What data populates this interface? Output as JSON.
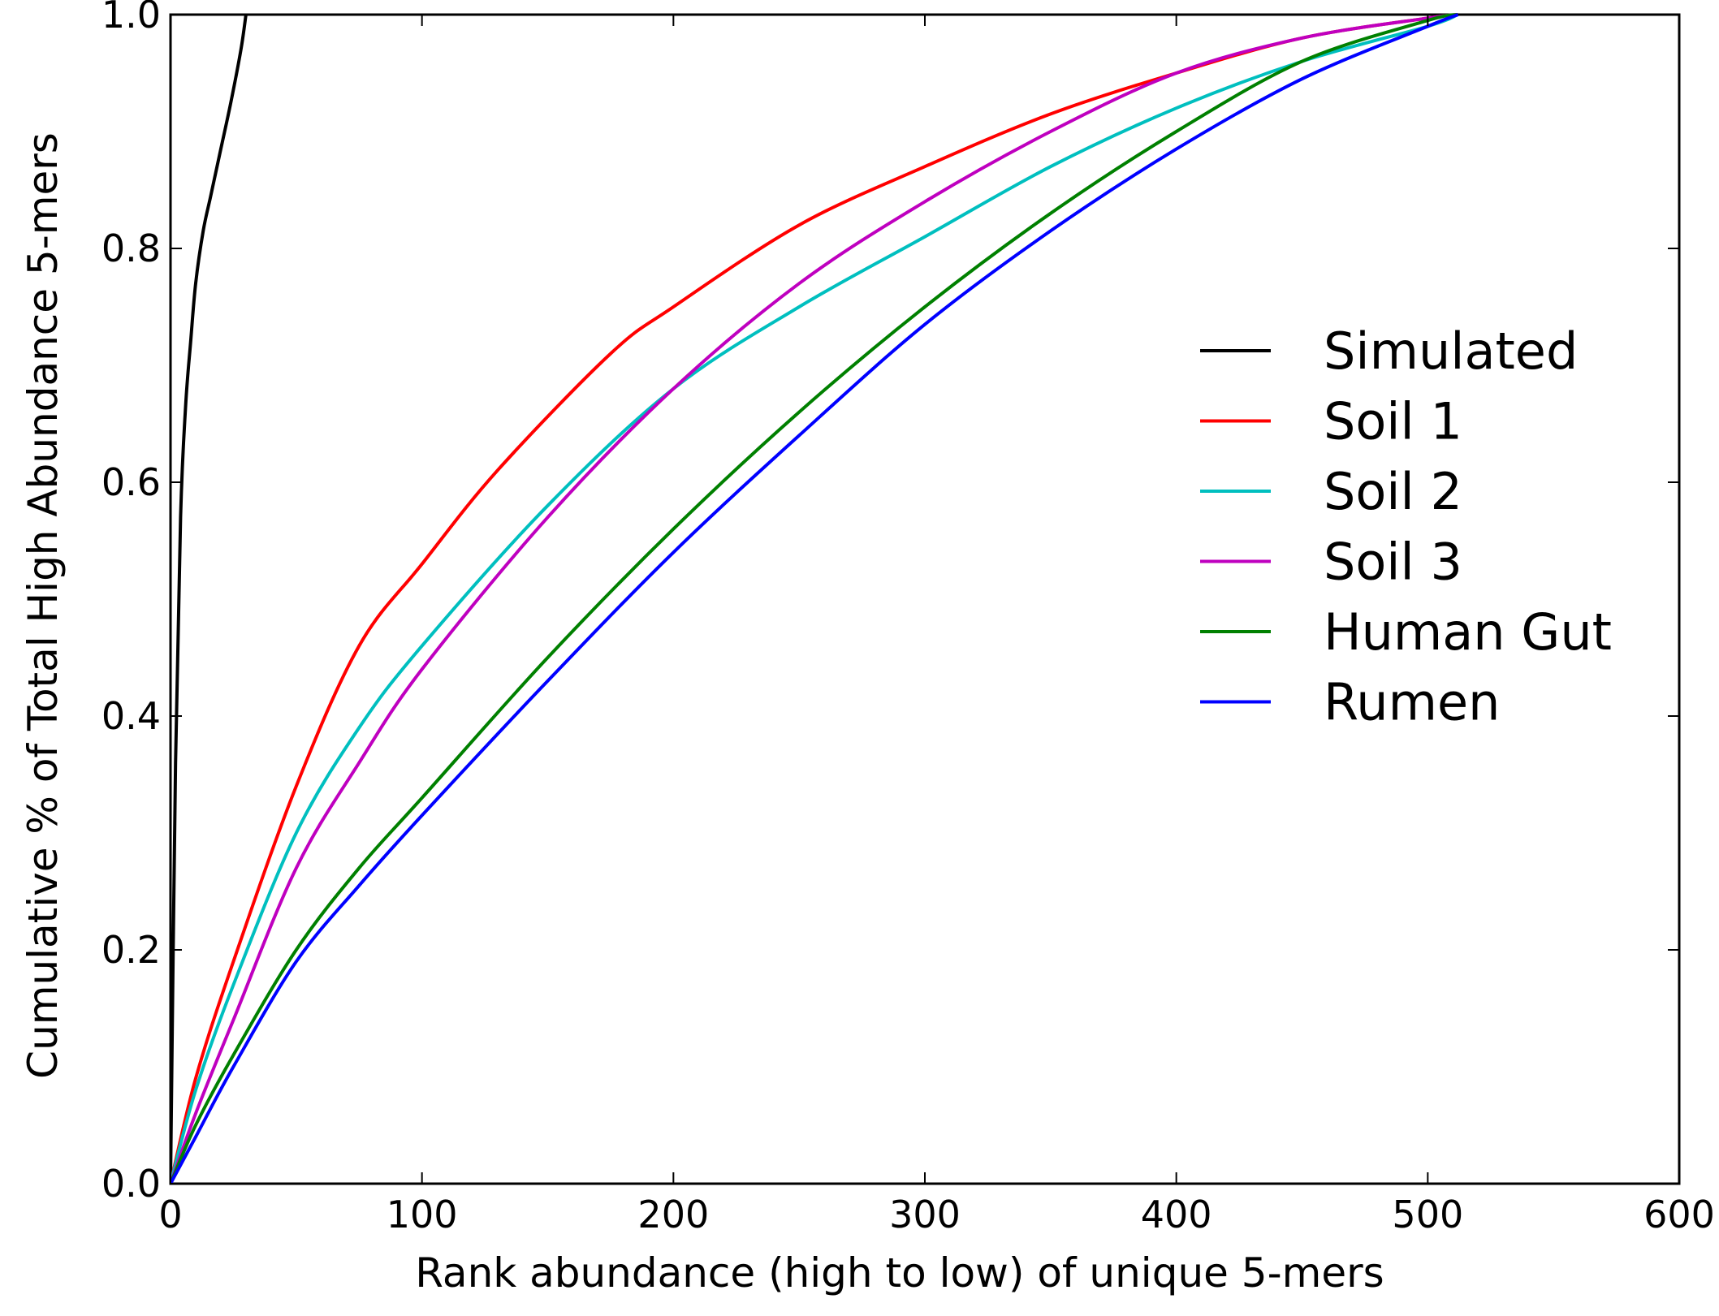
{
  "chart_data": {
    "type": "line",
    "title": "",
    "xlabel": "Rank abundance (high to low) of unique 5-mers",
    "ylabel": "Cumulative % of Total High Abundance 5-mers",
    "xlim": [
      0,
      600
    ],
    "ylim": [
      0.0,
      1.0
    ],
    "xticks": [
      0,
      100,
      200,
      300,
      400,
      500,
      600
    ],
    "xtick_labels": [
      "0",
      "100",
      "200",
      "300",
      "400",
      "500",
      "600"
    ],
    "yticks": [
      0.0,
      0.2,
      0.4,
      0.6,
      0.8,
      1.0
    ],
    "ytick_labels": [
      "0.0",
      "0.2",
      "0.4",
      "0.6",
      "0.8",
      "1.0"
    ],
    "grid": false,
    "legend_position": "center-right",
    "series": [
      {
        "name": "Simulated",
        "color": "#000000",
        "x": [
          0,
          2,
          4,
          6,
          8,
          10,
          13,
          16,
          20,
          24,
          28,
          30
        ],
        "y": [
          0.0,
          0.36,
          0.57,
          0.665,
          0.72,
          0.77,
          0.815,
          0.845,
          0.885,
          0.925,
          0.97,
          1.0
        ]
      },
      {
        "name": "Soil 1",
        "color": "#ff0000",
        "x": [
          0,
          10,
          25,
          50,
          75,
          100,
          130,
          175,
          200,
          250,
          300,
          350,
          400,
          450,
          500,
          512
        ],
        "y": [
          0.0,
          0.09,
          0.19,
          0.34,
          0.46,
          0.53,
          0.61,
          0.71,
          0.75,
          0.82,
          0.87,
          0.915,
          0.95,
          0.98,
          0.997,
          1.0
        ]
      },
      {
        "name": "Soil 2",
        "color": "#00bfbf",
        "x": [
          0,
          10,
          25,
          50,
          75,
          100,
          150,
          200,
          250,
          300,
          350,
          400,
          450,
          500,
          512
        ],
        "y": [
          0.0,
          0.08,
          0.17,
          0.3,
          0.39,
          0.46,
          0.58,
          0.68,
          0.75,
          0.81,
          0.87,
          0.92,
          0.96,
          0.99,
          1.0
        ]
      },
      {
        "name": "Soil 3",
        "color": "#bf00bf",
        "x": [
          0,
          10,
          25,
          50,
          75,
          100,
          150,
          200,
          250,
          300,
          350,
          400,
          450,
          500,
          512
        ],
        "y": [
          0.0,
          0.06,
          0.14,
          0.27,
          0.36,
          0.44,
          0.57,
          0.68,
          0.77,
          0.84,
          0.9,
          0.95,
          0.98,
          0.997,
          1.0
        ]
      },
      {
        "name": "Human Gut",
        "color": "#008000",
        "x": [
          0,
          10,
          25,
          50,
          75,
          100,
          150,
          200,
          250,
          300,
          350,
          400,
          450,
          500,
          512
        ],
        "y": [
          0.0,
          0.05,
          0.11,
          0.2,
          0.27,
          0.33,
          0.45,
          0.56,
          0.66,
          0.75,
          0.83,
          0.9,
          0.96,
          0.995,
          1.0
        ]
      },
      {
        "name": "Rumen",
        "color": "#0000ff",
        "x": [
          0,
          10,
          25,
          50,
          75,
          100,
          150,
          200,
          250,
          300,
          350,
          400,
          450,
          500,
          512
        ],
        "y": [
          0.0,
          0.04,
          0.1,
          0.19,
          0.255,
          0.315,
          0.43,
          0.54,
          0.64,
          0.735,
          0.815,
          0.885,
          0.945,
          0.99,
          1.0
        ]
      }
    ]
  }
}
